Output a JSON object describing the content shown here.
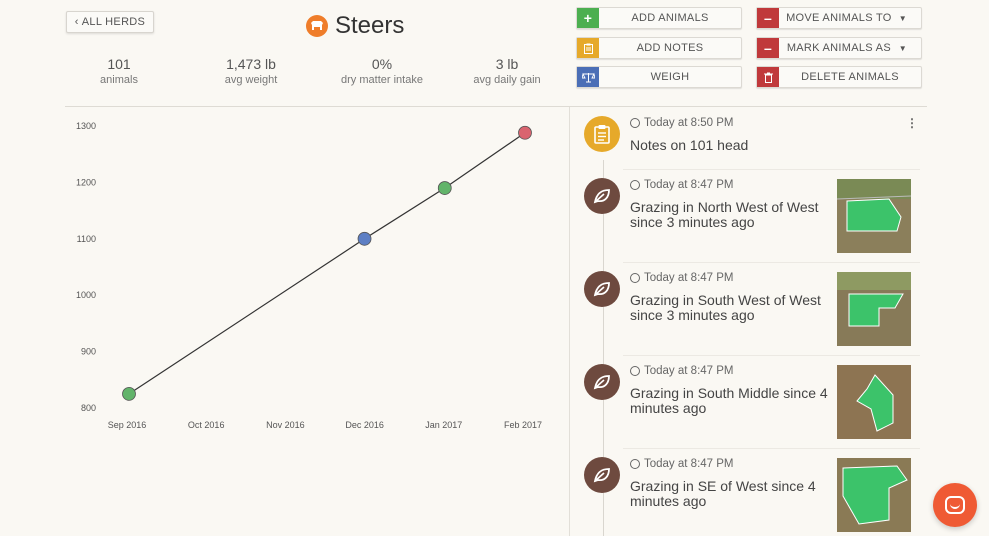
{
  "nav": {
    "back_label": "ALL HERDS"
  },
  "header": {
    "title": "Steers"
  },
  "stats": [
    {
      "value": "101",
      "label": "animals"
    },
    {
      "value": "1,473 lb",
      "label": "avg weight"
    },
    {
      "value": "0%",
      "label": "dry matter intake"
    },
    {
      "value": "3 lb",
      "label": "avg daily gain"
    }
  ],
  "actions": {
    "add_animals": "ADD ANIMALS",
    "add_notes": "ADD NOTES",
    "weigh": "WEIGH",
    "move_animals": "MOVE ANIMALS TO",
    "mark_animals": "MARK ANIMALS AS",
    "delete_animals": "DELETE ANIMALS"
  },
  "colors": {
    "green": "#4caf50",
    "amber": "#e6a92a",
    "blue": "#4b6eb6",
    "red": "#c0393b",
    "brown": "#6e4a3f",
    "orange": "#ef7d2a"
  },
  "chart_data": {
    "type": "line",
    "x": [
      "Sep 2016",
      "Oct 2016",
      "Nov 2016",
      "Dec 2016",
      "Jan 2017",
      "Feb 2017"
    ],
    "ylim": [
      800,
      1300
    ],
    "yticks": [
      "800",
      "900",
      "1000",
      "1100",
      "1200",
      "1300"
    ],
    "points": [
      {
        "x": "2016-09-01",
        "y": 825,
        "color": "#62b46a"
      },
      {
        "x": "2016-12-01",
        "y": 1100,
        "color": "#5d7fc4"
      },
      {
        "x": "2017-01-01",
        "y": 1190,
        "color": "#62b46a"
      },
      {
        "x": "2017-02-01",
        "y": 1288,
        "color": "#d9646f"
      }
    ],
    "grid": false
  },
  "feed": [
    {
      "time": "Today at 8:50 PM",
      "text": "Notes on 101 head",
      "icon": "clipboard-icon",
      "color": "#e6a92a"
    },
    {
      "time": "Today at 8:47 PM",
      "text": "Grazing in North West of West since 3 minutes ago",
      "icon": "leaf-icon",
      "color": "#6e4a3f"
    },
    {
      "time": "Today at 8:47 PM",
      "text": "Grazing in South West of West since 3 minutes ago",
      "icon": "leaf-icon",
      "color": "#6e4a3f"
    },
    {
      "time": "Today at 8:47 PM",
      "text": "Grazing in South Middle since 4 minutes ago",
      "icon": "leaf-icon",
      "color": "#6e4a3f"
    },
    {
      "time": "Today at 8:47 PM",
      "text": "Grazing in SE of West since 4 minutes ago",
      "icon": "leaf-icon",
      "color": "#6e4a3f"
    }
  ]
}
